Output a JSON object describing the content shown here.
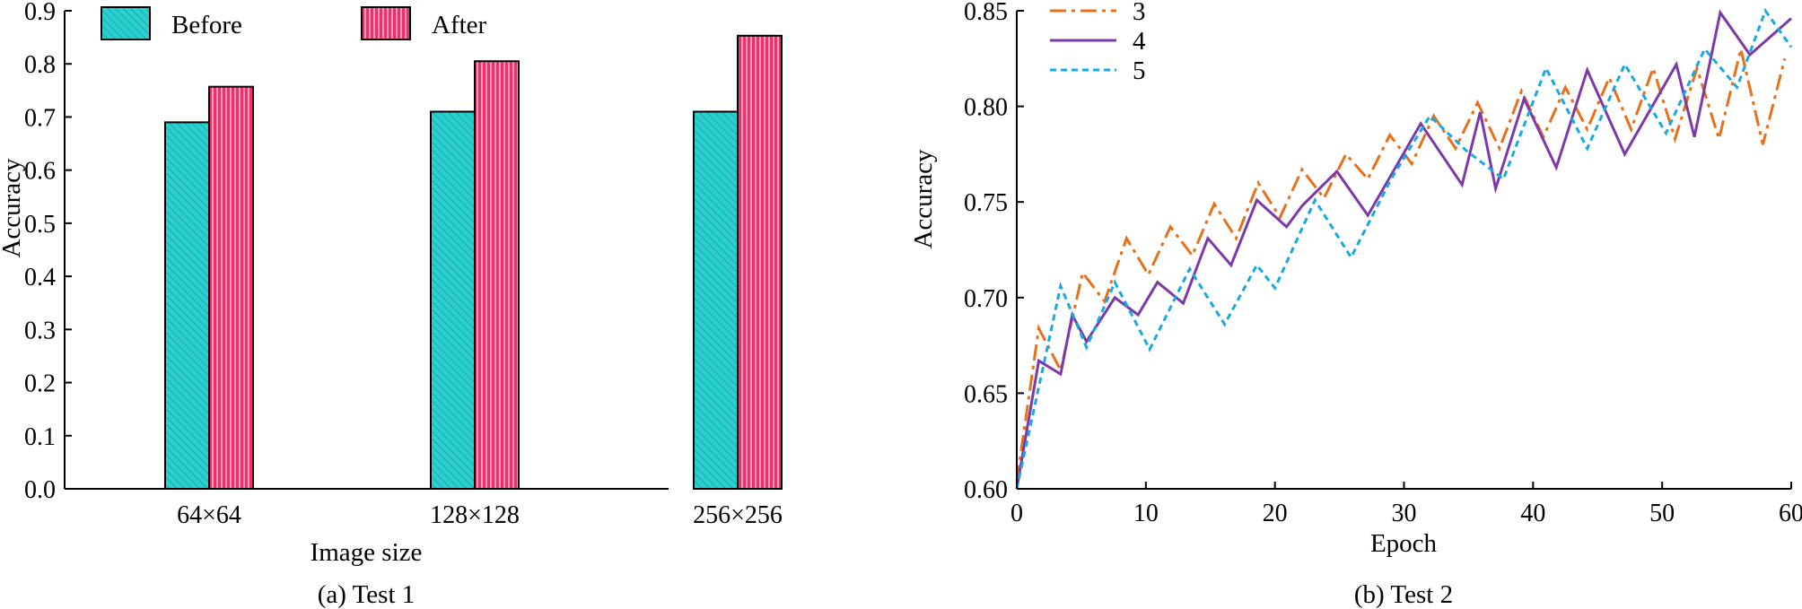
{
  "chart_data": [
    {
      "type": "bar",
      "caption": "(a) Test 1",
      "xlabel": "Image size",
      "ylabel": "Accuracy",
      "ylim": [
        0,
        0.9
      ],
      "yticks": [
        "0.0",
        "0.1",
        "0.2",
        "0.3",
        "0.4",
        "0.5",
        "0.6",
        "0.7",
        "0.8",
        "0.9"
      ],
      "categories": [
        "64×64",
        "128×128",
        "256×256"
      ],
      "legend_position": "top-left",
      "series": [
        {
          "name": "Before",
          "color": "#2ad0d0",
          "hatch": "diagonal",
          "values": [
            0.69,
            0.71,
            0.71
          ]
        },
        {
          "name": "After",
          "color": "#f0306e",
          "hatch": "vertical",
          "values": [
            0.757,
            0.805,
            0.853
          ]
        }
      ]
    },
    {
      "type": "line",
      "caption": "(b) Test 2",
      "xlabel": "Epoch",
      "ylabel": "Accuracy",
      "xlim": [
        0,
        60
      ],
      "ylim": [
        0.6,
        0.85
      ],
      "xticks": [
        "0",
        "10",
        "20",
        "30",
        "40",
        "50",
        "60"
      ],
      "yticks": [
        "0.60",
        "0.65",
        "0.70",
        "0.75",
        "0.80",
        "0.85"
      ],
      "legend_position": "top-left",
      "series": [
        {
          "name": "3",
          "color": "#e8701a",
          "dash": "dashdot",
          "x": [
            0,
            1.7,
            3.4,
            5.1,
            6.8,
            8.5,
            10.2,
            11.9,
            13.6,
            15.3,
            17,
            18.7,
            20.4,
            22.1,
            23.8,
            25.5,
            27.2,
            28.9,
            30.6,
            32.3,
            34,
            35.7,
            37.4,
            39.1,
            40.8,
            42.5,
            44.2,
            45.9,
            47.6,
            49.3,
            51,
            52.7,
            54.4,
            56.1,
            57.8,
            59.5
          ],
          "y": [
            0.604,
            0.684,
            0.662,
            0.713,
            0.698,
            0.731,
            0.712,
            0.737,
            0.722,
            0.749,
            0.731,
            0.76,
            0.742,
            0.767,
            0.752,
            0.775,
            0.762,
            0.785,
            0.77,
            0.795,
            0.778,
            0.802,
            0.778,
            0.808,
            0.784,
            0.81,
            0.788,
            0.815,
            0.788,
            0.82,
            0.783,
            0.82,
            0.783,
            0.83,
            0.78,
            0.825
          ]
        },
        {
          "name": "4",
          "color": "#7b3aa8",
          "dash": "solid",
          "x": [
            0,
            1.7,
            3.4,
            4.3,
            5.4,
            7.6,
            9.4,
            10.9,
            12.9,
            14.8,
            16.6,
            18.6,
            20.9,
            22.1,
            24.8,
            27.2,
            31.3,
            34.5,
            35.9,
            37.1,
            39.3,
            41.8,
            44.2,
            47.1,
            51.1,
            52.5,
            54.5,
            56.8,
            60
          ],
          "y": [
            0.6,
            0.667,
            0.66,
            0.691,
            0.677,
            0.7,
            0.691,
            0.708,
            0.697,
            0.731,
            0.717,
            0.751,
            0.737,
            0.748,
            0.766,
            0.743,
            0.791,
            0.759,
            0.797,
            0.757,
            0.804,
            0.768,
            0.819,
            0.775,
            0.822,
            0.784,
            0.849,
            0.827,
            0.846
          ]
        },
        {
          "name": "5",
          "color": "#1aa8e0",
          "dash": "dotted",
          "x": [
            0,
            3.4,
            5.4,
            7.6,
            10.3,
            13.4,
            16.1,
            18.6,
            20,
            23.1,
            25.9,
            29,
            32,
            34.8,
            37.7,
            41,
            44.2,
            47.1,
            50.3,
            53.3,
            55.8,
            58,
            60
          ],
          "y": [
            0.6,
            0.706,
            0.674,
            0.708,
            0.673,
            0.715,
            0.686,
            0.717,
            0.705,
            0.751,
            0.721,
            0.762,
            0.795,
            0.777,
            0.762,
            0.82,
            0.778,
            0.822,
            0.786,
            0.83,
            0.81,
            0.85,
            0.831
          ]
        }
      ]
    }
  ]
}
